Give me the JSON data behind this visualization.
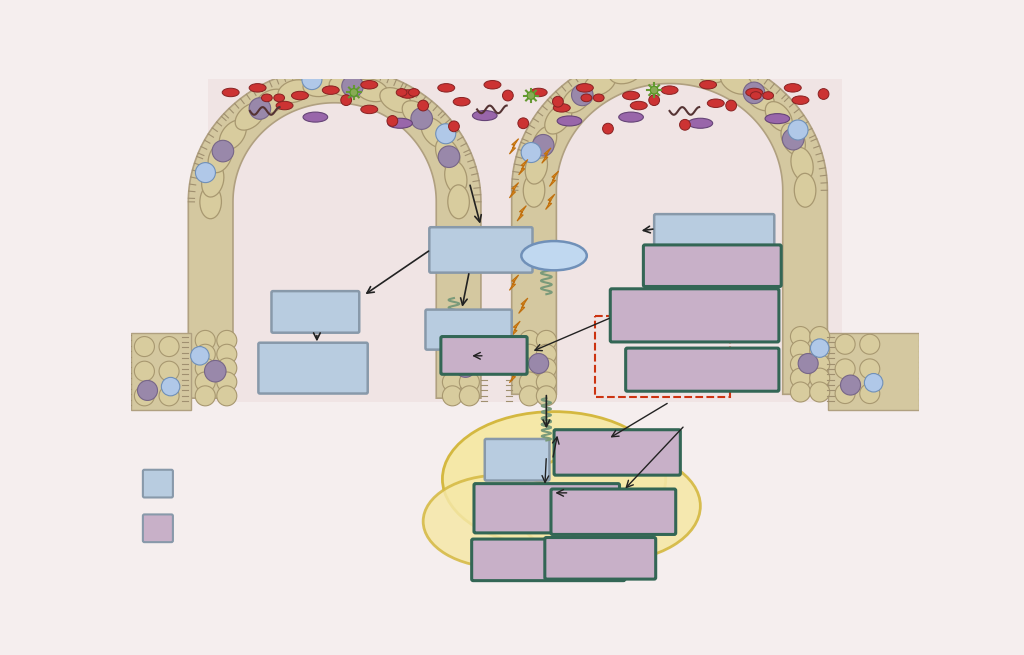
{
  "colors": {
    "bg": "#f5eeee",
    "lumen_bg": "#f0e0e0",
    "wall_fill": "#d4c8a0",
    "wall_edge": "#b0a080",
    "cell_tan": "#d8cc9e",
    "cell_edge": "#a89870",
    "cell_purple": "#9988aa",
    "cell_purple_edge": "#776688",
    "cell_blue": "#b0c8e8",
    "cell_blue_edge": "#7090b8",
    "brush_color": "#a09070",
    "box_blue_fill": "#b8cce0",
    "box_blue_edge": "#8899aa",
    "box_pink_fill": "#c8b0c8",
    "box_pink_edge": "#336655",
    "adipose_fill": "#f5e8a8",
    "adipose_edge": "#d4b840",
    "lightning_fill": "#f0a020",
    "lightning_edge": "#c07010",
    "bacteria_red": "#cc3333",
    "bacteria_red_edge": "#882222",
    "bacteria_purple": "#9966aa",
    "bacteria_purple_edge": "#664477",
    "bacteria_green": "#88aa55",
    "squiggle": "#553333",
    "oval_ellipse_fill": "#b8cce0",
    "oval_ellipse_edge": "#7090b8",
    "spring_color": "#7a9a7a",
    "arrow_color": "#222222",
    "dashed_color": "#cc3311",
    "legend_blue_fill": "#b8cce0",
    "legend_blue_edge": "#8899aa",
    "legend_pink_fill": "#c8b0c8",
    "legend_pink_edge": "#8899aa"
  }
}
